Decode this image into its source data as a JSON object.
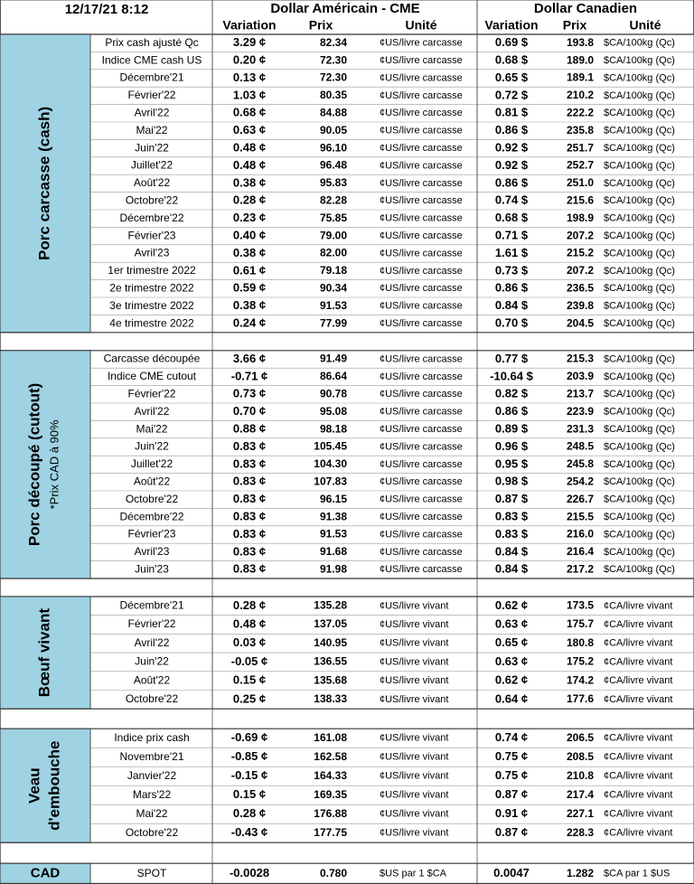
{
  "header": {
    "timestamp": "12/17/21 8:12",
    "usd_title": "Dollar Américain - CME",
    "cad_title": "Dollar Canadien",
    "columns": [
      "Variation",
      "Prix",
      "Unité",
      "Variation",
      "Prix",
      "Unité"
    ]
  },
  "sections": [
    {
      "title_lines": [
        "Porc carcasse (cash)"
      ],
      "rows": [
        [
          "Prix cash ajusté Qc",
          "3.29 ¢",
          "82.34",
          "¢US/livre carcasse",
          "0.69 $",
          "193.8",
          "$CA/100kg (Qc)"
        ],
        [
          "Indice CME cash US",
          "0.20 ¢",
          "72.30",
          "¢US/livre carcasse",
          "0.68 $",
          "189.0",
          "$CA/100kg (Qc)"
        ],
        [
          "Décembre'21",
          "0.13 ¢",
          "72.30",
          "¢US/livre carcasse",
          "0.65 $",
          "189.1",
          "$CA/100kg (Qc)"
        ],
        [
          "Février'22",
          "1.03 ¢",
          "80.35",
          "¢US/livre carcasse",
          "0.72 $",
          "210.2",
          "$CA/100kg (Qc)"
        ],
        [
          "Avril'22",
          "0.68 ¢",
          "84.88",
          "¢US/livre carcasse",
          "0.81 $",
          "222.2",
          "$CA/100kg (Qc)"
        ],
        [
          "Mai'22",
          "0.63 ¢",
          "90.05",
          "¢US/livre carcasse",
          "0.86 $",
          "235.8",
          "$CA/100kg (Qc)"
        ],
        [
          "Juin'22",
          "0.48 ¢",
          "96.10",
          "¢US/livre carcasse",
          "0.92 $",
          "251.7",
          "$CA/100kg (Qc)"
        ],
        [
          "Juillet'22",
          "0.48 ¢",
          "96.48",
          "¢US/livre carcasse",
          "0.92 $",
          "252.7",
          "$CA/100kg (Qc)"
        ],
        [
          "Août'22",
          "0.38 ¢",
          "95.83",
          "¢US/livre carcasse",
          "0.86 $",
          "251.0",
          "$CA/100kg (Qc)"
        ],
        [
          "Octobre'22",
          "0.28 ¢",
          "82.28",
          "¢US/livre carcasse",
          "0.74 $",
          "215.6",
          "$CA/100kg (Qc)"
        ],
        [
          "Décembre'22",
          "0.23 ¢",
          "75.85",
          "¢US/livre carcasse",
          "0.68 $",
          "198.9",
          "$CA/100kg (Qc)"
        ],
        [
          "Février'23",
          "0.40 ¢",
          "79.00",
          "¢US/livre carcasse",
          "0.71 $",
          "207.2",
          "$CA/100kg (Qc)"
        ],
        [
          "Avril'23",
          "0.38 ¢",
          "82.00",
          "¢US/livre carcasse",
          "1.61 $",
          "215.2",
          "$CA/100kg (Qc)"
        ],
        [
          "1er trimestre 2022",
          "0.61 ¢",
          "79.18",
          "¢US/livre carcasse",
          "0.73 $",
          "207.2",
          "$CA/100kg (Qc)"
        ],
        [
          "2e trimestre 2022",
          "0.59 ¢",
          "90.34",
          "¢US/livre carcasse",
          "0.86 $",
          "236.5",
          "$CA/100kg (Qc)"
        ],
        [
          "3e trimestre 2022",
          "0.38 ¢",
          "91.53",
          "¢US/livre carcasse",
          "0.84 $",
          "239.8",
          "$CA/100kg (Qc)"
        ],
        [
          "4e trimestre 2022",
          "0.24 ¢",
          "77.99",
          "¢US/livre carcasse",
          "0.70 $",
          "204.5",
          "$CA/100kg (Qc)"
        ]
      ]
    },
    {
      "title_lines": [
        "Porc découpé (cutout)",
        "*Prix CAD à 90%"
      ],
      "rows": [
        [
          "Carcasse découpée",
          "3.66 ¢",
          "91.49",
          "¢US/livre carcasse",
          "0.77 $",
          "215.3",
          "$CA/100kg (Qc)"
        ],
        [
          "Indice CME cutout",
          "-0.71 ¢",
          "86.64",
          "¢US/livre carcasse",
          "-10.64 $",
          "203.9",
          "$CA/100kg (Qc)"
        ],
        [
          "Février'22",
          "0.73 ¢",
          "90.78",
          "¢US/livre carcasse",
          "0.82 $",
          "213.7",
          "$CA/100kg (Qc)"
        ],
        [
          "Avril'22",
          "0.70 ¢",
          "95.08",
          "¢US/livre carcasse",
          "0.86 $",
          "223.9",
          "$CA/100kg (Qc)"
        ],
        [
          "Mai'22",
          "0.88 ¢",
          "98.18",
          "¢US/livre carcasse",
          "0.89 $",
          "231.3",
          "$CA/100kg (Qc)"
        ],
        [
          "Juin'22",
          "0.83 ¢",
          "105.45",
          "¢US/livre carcasse",
          "0.96 $",
          "248.5",
          "$CA/100kg (Qc)"
        ],
        [
          "Juillet'22",
          "0.83 ¢",
          "104.30",
          "¢US/livre carcasse",
          "0.95 $",
          "245.8",
          "$CA/100kg (Qc)"
        ],
        [
          "Août'22",
          "0.83 ¢",
          "107.83",
          "¢US/livre carcasse",
          "0.98 $",
          "254.2",
          "$CA/100kg (Qc)"
        ],
        [
          "Octobre'22",
          "0.83 ¢",
          "96.15",
          "¢US/livre carcasse",
          "0.87 $",
          "226.7",
          "$CA/100kg (Qc)"
        ],
        [
          "Décembre'22",
          "0.83 ¢",
          "91.38",
          "¢US/livre carcasse",
          "0.83 $",
          "215.5",
          "$CA/100kg (Qc)"
        ],
        [
          "Février'23",
          "0.83 ¢",
          "91.53",
          "¢US/livre carcasse",
          "0.83 $",
          "216.0",
          "$CA/100kg (Qc)"
        ],
        [
          "Avril'23",
          "0.83 ¢",
          "91.68",
          "¢US/livre carcasse",
          "0.84 $",
          "216.4",
          "$CA/100kg (Qc)"
        ],
        [
          "Juin'23",
          "0.83 ¢",
          "91.98",
          "¢US/livre carcasse",
          "0.84 $",
          "217.2",
          "$CA/100kg (Qc)"
        ]
      ]
    },
    {
      "title_lines": [
        "Bœuf vivant"
      ],
      "rows": [
        [
          "Décembre'21",
          "0.28 ¢",
          "135.28",
          "¢US/livre vivant",
          "0.62 ¢",
          "173.5",
          "¢CA/livre vivant"
        ],
        [
          "Février'22",
          "0.48 ¢",
          "137.05",
          "¢US/livre vivant",
          "0.63 ¢",
          "175.7",
          "¢CA/livre vivant"
        ],
        [
          "Avril'22",
          "0.03 ¢",
          "140.95",
          "¢US/livre vivant",
          "0.65 ¢",
          "180.8",
          "¢CA/livre vivant"
        ],
        [
          "Juin'22",
          "-0.05 ¢",
          "136.55",
          "¢US/livre vivant",
          "0.63 ¢",
          "175.2",
          "¢CA/livre vivant"
        ],
        [
          "Août'22",
          "0.15 ¢",
          "135.68",
          "¢US/livre vivant",
          "0.62 ¢",
          "174.2",
          "¢CA/livre vivant"
        ],
        [
          "Octobre'22",
          "0.25 ¢",
          "138.33",
          "¢US/livre vivant",
          "0.64 ¢",
          "177.6",
          "¢CA/livre vivant"
        ]
      ]
    },
    {
      "title_lines": [
        "Veau",
        "d'embouche"
      ],
      "rows": [
        [
          "Indice prix cash",
          "-0.69 ¢",
          "161.08",
          "¢US/livre vivant",
          "0.74 ¢",
          "206.5",
          "¢CA/livre vivant"
        ],
        [
          "Novembre'21",
          "-0.85 ¢",
          "162.58",
          "¢US/livre vivant",
          "0.75 ¢",
          "208.5",
          "¢CA/livre vivant"
        ],
        [
          "Janvier'22",
          "-0.15 ¢",
          "164.33",
          "¢US/livre vivant",
          "0.75 ¢",
          "210.8",
          "¢CA/livre vivant"
        ],
        [
          "Mars'22",
          "0.15 ¢",
          "169.35",
          "¢US/livre vivant",
          "0.87 ¢",
          "217.4",
          "¢CA/livre vivant"
        ],
        [
          "Mai'22",
          "0.28 ¢",
          "176.88",
          "¢US/livre vivant",
          "0.91 ¢",
          "227.1",
          "¢CA/livre vivant"
        ],
        [
          "Octobre'22",
          "-0.43 ¢",
          "177.75",
          "¢US/livre vivant",
          "0.87 ¢",
          "228.3",
          "¢CA/livre vivant"
        ]
      ]
    }
  ],
  "cad": {
    "title": "CAD",
    "row": [
      "SPOT",
      "-0.0028",
      "0.780",
      "$US par 1 $CA",
      "0.0047",
      "1.282",
      "$CA par 1 $US"
    ]
  }
}
